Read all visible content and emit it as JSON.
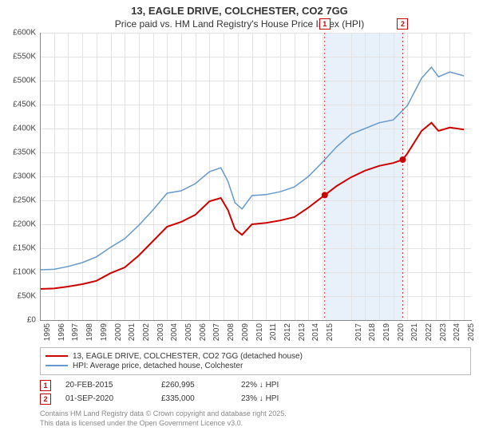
{
  "title_line1": "13, EAGLE DRIVE, COLCHESTER, CO2 7GG",
  "title_line2": "Price paid vs. HM Land Registry's House Price Index (HPI)",
  "chart": {
    "type": "line",
    "x_start": 1995,
    "x_end": 2025.5,
    "x_ticks": [
      1995,
      1996,
      1997,
      1998,
      1999,
      2000,
      2001,
      2002,
      2003,
      2004,
      2005,
      2006,
      2007,
      2008,
      2009,
      2010,
      2011,
      2012,
      2013,
      2014,
      2015,
      2017,
      2018,
      2019,
      2020,
      2021,
      2022,
      2023,
      2024,
      2025
    ],
    "y_min": 0,
    "y_max": 600000,
    "y_step": 50000,
    "y_prefix": "£",
    "y_suffix": "K",
    "background_color": "#ffffff",
    "grid_color": "#e3e3e3",
    "highlight_band": {
      "x_from": 2015.15,
      "x_to": 2020.67,
      "color": "#d6e6f5"
    },
    "series": [
      {
        "name": "price_paid",
        "label": "13, EAGLE DRIVE, COLCHESTER, CO2 7GG (detached house)",
        "color": "#cc0000",
        "width": 2,
        "points": [
          [
            1995,
            65000
          ],
          [
            1996,
            66000
          ],
          [
            1997,
            70000
          ],
          [
            1998,
            75000
          ],
          [
            1999,
            82000
          ],
          [
            2000,
            98000
          ],
          [
            2001,
            110000
          ],
          [
            2002,
            135000
          ],
          [
            2003,
            165000
          ],
          [
            2004,
            195000
          ],
          [
            2005,
            205000
          ],
          [
            2006,
            220000
          ],
          [
            2007,
            248000
          ],
          [
            2007.8,
            255000
          ],
          [
            2008.3,
            230000
          ],
          [
            2008.8,
            190000
          ],
          [
            2009.3,
            178000
          ],
          [
            2010,
            200000
          ],
          [
            2011,
            203000
          ],
          [
            2012,
            208000
          ],
          [
            2013,
            215000
          ],
          [
            2014,
            235000
          ],
          [
            2015.15,
            260995
          ],
          [
            2016,
            280000
          ],
          [
            2017,
            298000
          ],
          [
            2018,
            312000
          ],
          [
            2019,
            322000
          ],
          [
            2020,
            328000
          ],
          [
            2020.67,
            335000
          ],
          [
            2021,
            348000
          ],
          [
            2022,
            395000
          ],
          [
            2022.7,
            412000
          ],
          [
            2023.2,
            395000
          ],
          [
            2024,
            402000
          ],
          [
            2025,
            398000
          ]
        ],
        "markers": [
          {
            "x": 2015.15,
            "y": 260995
          },
          {
            "x": 2020.67,
            "y": 335000
          }
        ]
      },
      {
        "name": "hpi",
        "label": "HPI: Average price, detached house, Colchester",
        "color": "#6699cc",
        "width": 1.5,
        "points": [
          [
            1995,
            105000
          ],
          [
            1996,
            106000
          ],
          [
            1997,
            112000
          ],
          [
            1998,
            120000
          ],
          [
            1999,
            132000
          ],
          [
            2000,
            152000
          ],
          [
            2001,
            170000
          ],
          [
            2002,
            198000
          ],
          [
            2003,
            230000
          ],
          [
            2004,
            265000
          ],
          [
            2005,
            270000
          ],
          [
            2006,
            285000
          ],
          [
            2007,
            310000
          ],
          [
            2007.8,
            318000
          ],
          [
            2008.3,
            290000
          ],
          [
            2008.8,
            245000
          ],
          [
            2009.3,
            232000
          ],
          [
            2010,
            260000
          ],
          [
            2011,
            262000
          ],
          [
            2012,
            268000
          ],
          [
            2013,
            278000
          ],
          [
            2014,
            300000
          ],
          [
            2015,
            330000
          ],
          [
            2016,
            362000
          ],
          [
            2017,
            388000
          ],
          [
            2018,
            400000
          ],
          [
            2019,
            412000
          ],
          [
            2020,
            418000
          ],
          [
            2021,
            448000
          ],
          [
            2022,
            505000
          ],
          [
            2022.7,
            528000
          ],
          [
            2023.2,
            508000
          ],
          [
            2024,
            518000
          ],
          [
            2025,
            510000
          ]
        ]
      }
    ],
    "event_markers": [
      {
        "id": "1",
        "x": 2015.15,
        "color": "#cc0000"
      },
      {
        "id": "2",
        "x": 2020.67,
        "color": "#cc0000"
      }
    ]
  },
  "legend": {
    "items": [
      {
        "color": "#cc0000",
        "label": "13, EAGLE DRIVE, COLCHESTER, CO2 7GG (detached house)"
      },
      {
        "color": "#6699cc",
        "label": "HPI: Average price, detached house, Colchester"
      }
    ]
  },
  "events": [
    {
      "id": "1",
      "color": "#cc0000",
      "date": "20-FEB-2015",
      "price": "£260,995",
      "delta": "22% ↓ HPI"
    },
    {
      "id": "2",
      "color": "#cc0000",
      "date": "01-SEP-2020",
      "price": "£335,000",
      "delta": "23% ↓ HPI"
    }
  ],
  "footnote_line1": "Contains HM Land Registry data © Crown copyright and database right 2025.",
  "footnote_line2": "This data is licensed under the Open Government Licence v3.0."
}
